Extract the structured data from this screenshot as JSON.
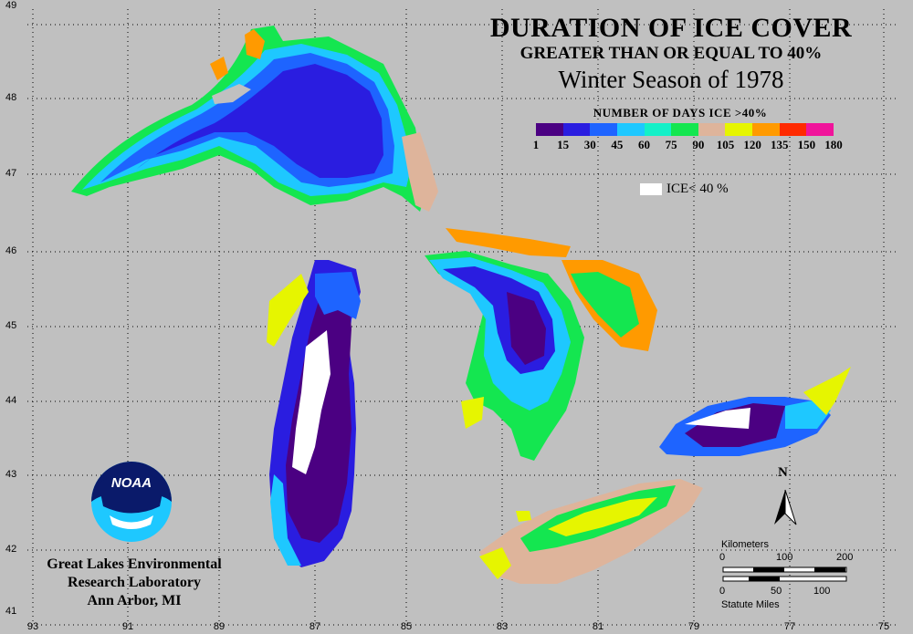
{
  "title": {
    "line1": "DURATION OF ICE COVER",
    "line2": "GREATER THAN OR EQUAL TO 40%",
    "line3": "Winter Season of 1978"
  },
  "legend": {
    "title": "NUMBER OF DAYS ICE >40%",
    "colors": [
      "#4b0082",
      "#2a1de0",
      "#1e64ff",
      "#1ec8ff",
      "#14f0c8",
      "#14e650",
      "#deb49b",
      "#e6f500",
      "#ff9a00",
      "#ff2a00",
      "#f0149b"
    ],
    "ticks": [
      "1",
      "15",
      "30",
      "45",
      "60",
      "75",
      "90",
      "105",
      "120",
      "135",
      "150",
      "180"
    ],
    "ice_label": "ICE< 40 %"
  },
  "axes": {
    "latitudes": [
      "49",
      "48",
      "47",
      "46",
      "45",
      "44",
      "43",
      "42",
      "41"
    ],
    "longitudes": [
      "93",
      "91",
      "89",
      "87",
      "85",
      "83",
      "81",
      "79",
      "77",
      "75"
    ]
  },
  "logo": {
    "text": "NOAA"
  },
  "lab": {
    "line1": "Great Lakes Environmental",
    "line2": "Research Laboratory",
    "line3": "Ann Arbor, MI"
  },
  "scalebar": {
    "km_label": "Kilometers",
    "km_ticks": [
      "0",
      "100",
      "200"
    ],
    "mi_ticks": [
      "0",
      "50",
      "100"
    ],
    "mi_label": "Statute Miles"
  },
  "north": "N"
}
